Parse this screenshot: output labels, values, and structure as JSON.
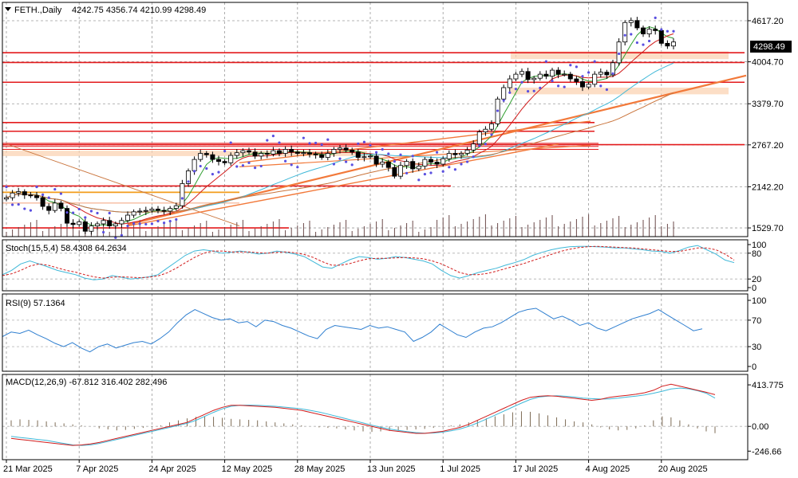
{
  "header": {
    "symbol": "FETH.,Daily",
    "ohlc": "4242.75 4356.74 4210.99 4298.49"
  },
  "colors": {
    "bull": "#ffffff",
    "bear": "#000000",
    "hline": "#e31a1c",
    "orange_line": "#f2793a",
    "orange_zone": "#fbd3b3",
    "ma_fast": "#2e9e2e",
    "ma_mid": "#d11b1b",
    "ma_cyan": "#3fb8d8",
    "ma_slow": "#c9733a",
    "sar": "#5a4fe0",
    "price_tag_bg": "#000000",
    "stoch_main": "#3fb8d8",
    "stoch_signal": "#d11b1b",
    "rsi": "#2f7fd0",
    "macd_signal": "#d11b1b",
    "macd_line": "#3fb8d8",
    "macd_hist": "#7d6b55"
  },
  "chart_data": [
    {
      "type": "candlestick",
      "panel": "price",
      "title": "FETH.,Daily",
      "last_price": 4298.49,
      "last_price_label": "4298.49",
      "y_ticks": [
        4617.2,
        4004.7,
        3379.7,
        2767.2,
        2142.2,
        1529.7
      ],
      "y_tick_labels": [
        "4617.20",
        "4004.70",
        "3379.70",
        "2767.20",
        "2142.20",
        "1529.70"
      ],
      "ylim": [
        1400,
        4890
      ],
      "x_tick_labels": [
        "21 Mar 2025",
        "7 Apr 2025",
        "24 Apr 2025",
        "12 May 2025",
        "28 May 2025",
        "13 Jun 2025",
        "1 Jul 2025",
        "17 Jul 2025",
        "4 Aug 2025",
        "20 Aug 2025"
      ],
      "x_tick_index": [
        0,
        12,
        24,
        36,
        48,
        60,
        72,
        84,
        96,
        108
      ],
      "close": [
        1980,
        2050,
        2070,
        2020,
        2010,
        1980,
        1850,
        1790,
        1900,
        1820,
        1600,
        1580,
        1620,
        1480,
        1560,
        1590,
        1640,
        1560,
        1590,
        1640,
        1720,
        1770,
        1780,
        1790,
        1810,
        1790,
        1780,
        1820,
        1860,
        2190,
        2380,
        2550,
        2640,
        2620,
        2550,
        2520,
        2500,
        2610,
        2650,
        2680,
        2660,
        2600,
        2640,
        2630,
        2680,
        2640,
        2700,
        2660,
        2640,
        2650,
        2630,
        2620,
        2580,
        2640,
        2700,
        2720,
        2690,
        2660,
        2580,
        2590,
        2600,
        2480,
        2510,
        2430,
        2300,
        2460,
        2520,
        2410,
        2450,
        2550,
        2510,
        2480,
        2560,
        2640,
        2620,
        2640,
        2690,
        2780,
        2960,
        3000,
        3080,
        3450,
        3620,
        3750,
        3820,
        3860,
        3740,
        3760,
        3820,
        3790,
        3880,
        3820,
        3820,
        3750,
        3710,
        3630,
        3670,
        3820,
        3850,
        3810,
        3990,
        4300,
        4590,
        4620,
        4510,
        4420,
        4490,
        4470,
        4280,
        4240,
        4300
      ],
      "horizontal_levels": [
        4140,
        3995,
        3700,
        3100,
        2970,
        2770,
        2155,
        1530
      ],
      "resistance_zones": [
        [
          4045,
          4160
        ],
        [
          3520,
          3620
        ],
        [
          2600,
          2680
        ]
      ],
      "indicators": [
        "SMA fast",
        "SMA mid",
        "MA cyan",
        "MA slow",
        "Parabolic SAR",
        "Volume"
      ]
    },
    {
      "type": "line",
      "panel": "stochastic",
      "title": "Stoch(15,5,4) 58.4308 64.2634",
      "name": "Stoch(15,5,4)",
      "values_text": "58.4308 64.2634",
      "ylim": [
        0,
        100
      ],
      "y_ticks": [
        100,
        80,
        20,
        0
      ],
      "y_tick_labels": [
        "100",
        "80",
        "20",
        "0"
      ],
      "series": [
        {
          "name": "main",
          "values": [
            30,
            40,
            55,
            62,
            55,
            48,
            40,
            35,
            30,
            22,
            18,
            20,
            28,
            24,
            20,
            22,
            25,
            30,
            45,
            60,
            75,
            85,
            88,
            85,
            80,
            82,
            85,
            82,
            78,
            80,
            85,
            82,
            78,
            72,
            60,
            48,
            45,
            55,
            65,
            72,
            70,
            66,
            68,
            72,
            70,
            66,
            62,
            55,
            40,
            28,
            22,
            28,
            35,
            40,
            45,
            52,
            58,
            65,
            75,
            82,
            88,
            92,
            95,
            96,
            96,
            95,
            94,
            92,
            92,
            90,
            88,
            85,
            84,
            80,
            86,
            94,
            98,
            88,
            78,
            64,
            58
          ]
        },
        {
          "name": "signal",
          "values": [
            28,
            32,
            40,
            50,
            55,
            52,
            46,
            40,
            36,
            30,
            25,
            22,
            24,
            25,
            24,
            23,
            24,
            27,
            34,
            45,
            58,
            70,
            80,
            85,
            85,
            83,
            83,
            83,
            81,
            80,
            82,
            83,
            81,
            77,
            70,
            60,
            52,
            52,
            56,
            62,
            67,
            68,
            68,
            69,
            70,
            69,
            67,
            62,
            55,
            45,
            35,
            30,
            30,
            33,
            38,
            44,
            50,
            56,
            63,
            70,
            77,
            84,
            89,
            93,
            95,
            96,
            95,
            94,
            93,
            92,
            90,
            88,
            86,
            84,
            84,
            88,
            92,
            92,
            88,
            78,
            64
          ]
        }
      ]
    },
    {
      "type": "line",
      "panel": "rsi",
      "title": "RSI(9) 57.1364",
      "name": "RSI(9)",
      "values_text": "57.1364",
      "ylim": [
        0,
        100
      ],
      "y_ticks": [
        100,
        70,
        30,
        0
      ],
      "y_tick_labels": [
        "100",
        "70",
        "30",
        "0"
      ],
      "series": [
        {
          "name": "RSI(9)",
          "values": [
            45,
            52,
            50,
            55,
            48,
            42,
            35,
            30,
            36,
            28,
            22,
            30,
            34,
            28,
            32,
            36,
            38,
            34,
            42,
            52,
            66,
            78,
            86,
            80,
            74,
            70,
            72,
            66,
            68,
            60,
            70,
            68,
            62,
            58,
            52,
            46,
            42,
            56,
            62,
            60,
            58,
            56,
            62,
            58,
            60,
            56,
            52,
            38,
            44,
            52,
            64,
            56,
            48,
            44,
            52,
            58,
            60,
            66,
            74,
            82,
            86,
            88,
            80,
            72,
            76,
            70,
            62,
            66,
            58,
            54,
            60,
            66,
            72,
            76,
            80,
            86,
            78,
            70,
            62,
            54,
            57
          ]
        }
      ]
    },
    {
      "type": "bar",
      "panel": "macd",
      "title": "MACD(12,26,9) -67.812 316.402 282.496",
      "name": "MACD(12,26,9)",
      "values_text": "-67.812 316.402 282.496",
      "ylim": [
        -300,
        470
      ],
      "y_ticks": [
        413.775,
        0.0,
        -246.66
      ],
      "y_tick_labels": [
        "413.775",
        "0.00",
        "-246.66"
      ],
      "histogram": [
        60,
        70,
        65,
        60,
        50,
        40,
        30,
        20,
        10,
        0,
        -20,
        -30,
        -40,
        -35,
        -25,
        -15,
        -5,
        10,
        40,
        60,
        80,
        95,
        100,
        95,
        85,
        75,
        70,
        65,
        60,
        50,
        40,
        30,
        20,
        10,
        0,
        -10,
        -15,
        -20,
        -30,
        -40,
        -50,
        -55,
        -50,
        -45,
        -40,
        -35,
        -30,
        -25,
        -15,
        -5,
        10,
        20,
        40,
        60,
        80,
        100,
        120,
        140,
        150,
        145,
        130,
        110,
        90,
        70,
        50,
        40,
        20,
        -10,
        -30,
        -40,
        -35,
        -20,
        10,
        60,
        100,
        90,
        60,
        20,
        -20,
        -50,
        -68
      ],
      "series": [
        {
          "name": "signal",
          "values": [
            -120,
            -130,
            -140,
            -150,
            -160,
            -170,
            -180,
            -190,
            -185,
            -175,
            -160,
            -140,
            -120,
            -100,
            -80,
            -60,
            -40,
            -20,
            0,
            20,
            40,
            80,
            120,
            160,
            190,
            210,
            210,
            205,
            200,
            195,
            190,
            180,
            170,
            160,
            140,
            120,
            100,
            80,
            60,
            40,
            20,
            0,
            -20,
            -40,
            -50,
            -60,
            -70,
            -70,
            -60,
            -50,
            -30,
            -10,
            20,
            60,
            100,
            140,
            180,
            220,
            260,
            290,
            300,
            305,
            300,
            290,
            280,
            270,
            260,
            270,
            290,
            300,
            310,
            320,
            335,
            360,
            400,
            420,
            400,
            380,
            360,
            340,
            316
          ]
        },
        {
          "name": "macd",
          "values": [
            -100,
            -110,
            -120,
            -130,
            -140,
            -155,
            -170,
            -185,
            -190,
            -185,
            -170,
            -150,
            -130,
            -110,
            -90,
            -70,
            -50,
            -30,
            -10,
            10,
            30,
            60,
            100,
            140,
            175,
            200,
            210,
            212,
            210,
            205,
            200,
            192,
            184,
            174,
            160,
            142,
            122,
            100,
            78,
            56,
            34,
            12,
            -8,
            -26,
            -40,
            -52,
            -62,
            -68,
            -66,
            -58,
            -44,
            -26,
            0,
            34,
            72,
            112,
            152,
            192,
            232,
            268,
            292,
            302,
            305,
            300,
            292,
            282,
            276,
            272,
            274,
            282,
            292,
            302,
            314,
            330,
            350,
            372,
            382,
            375,
            356,
            330,
            282
          ]
        }
      ]
    }
  ]
}
